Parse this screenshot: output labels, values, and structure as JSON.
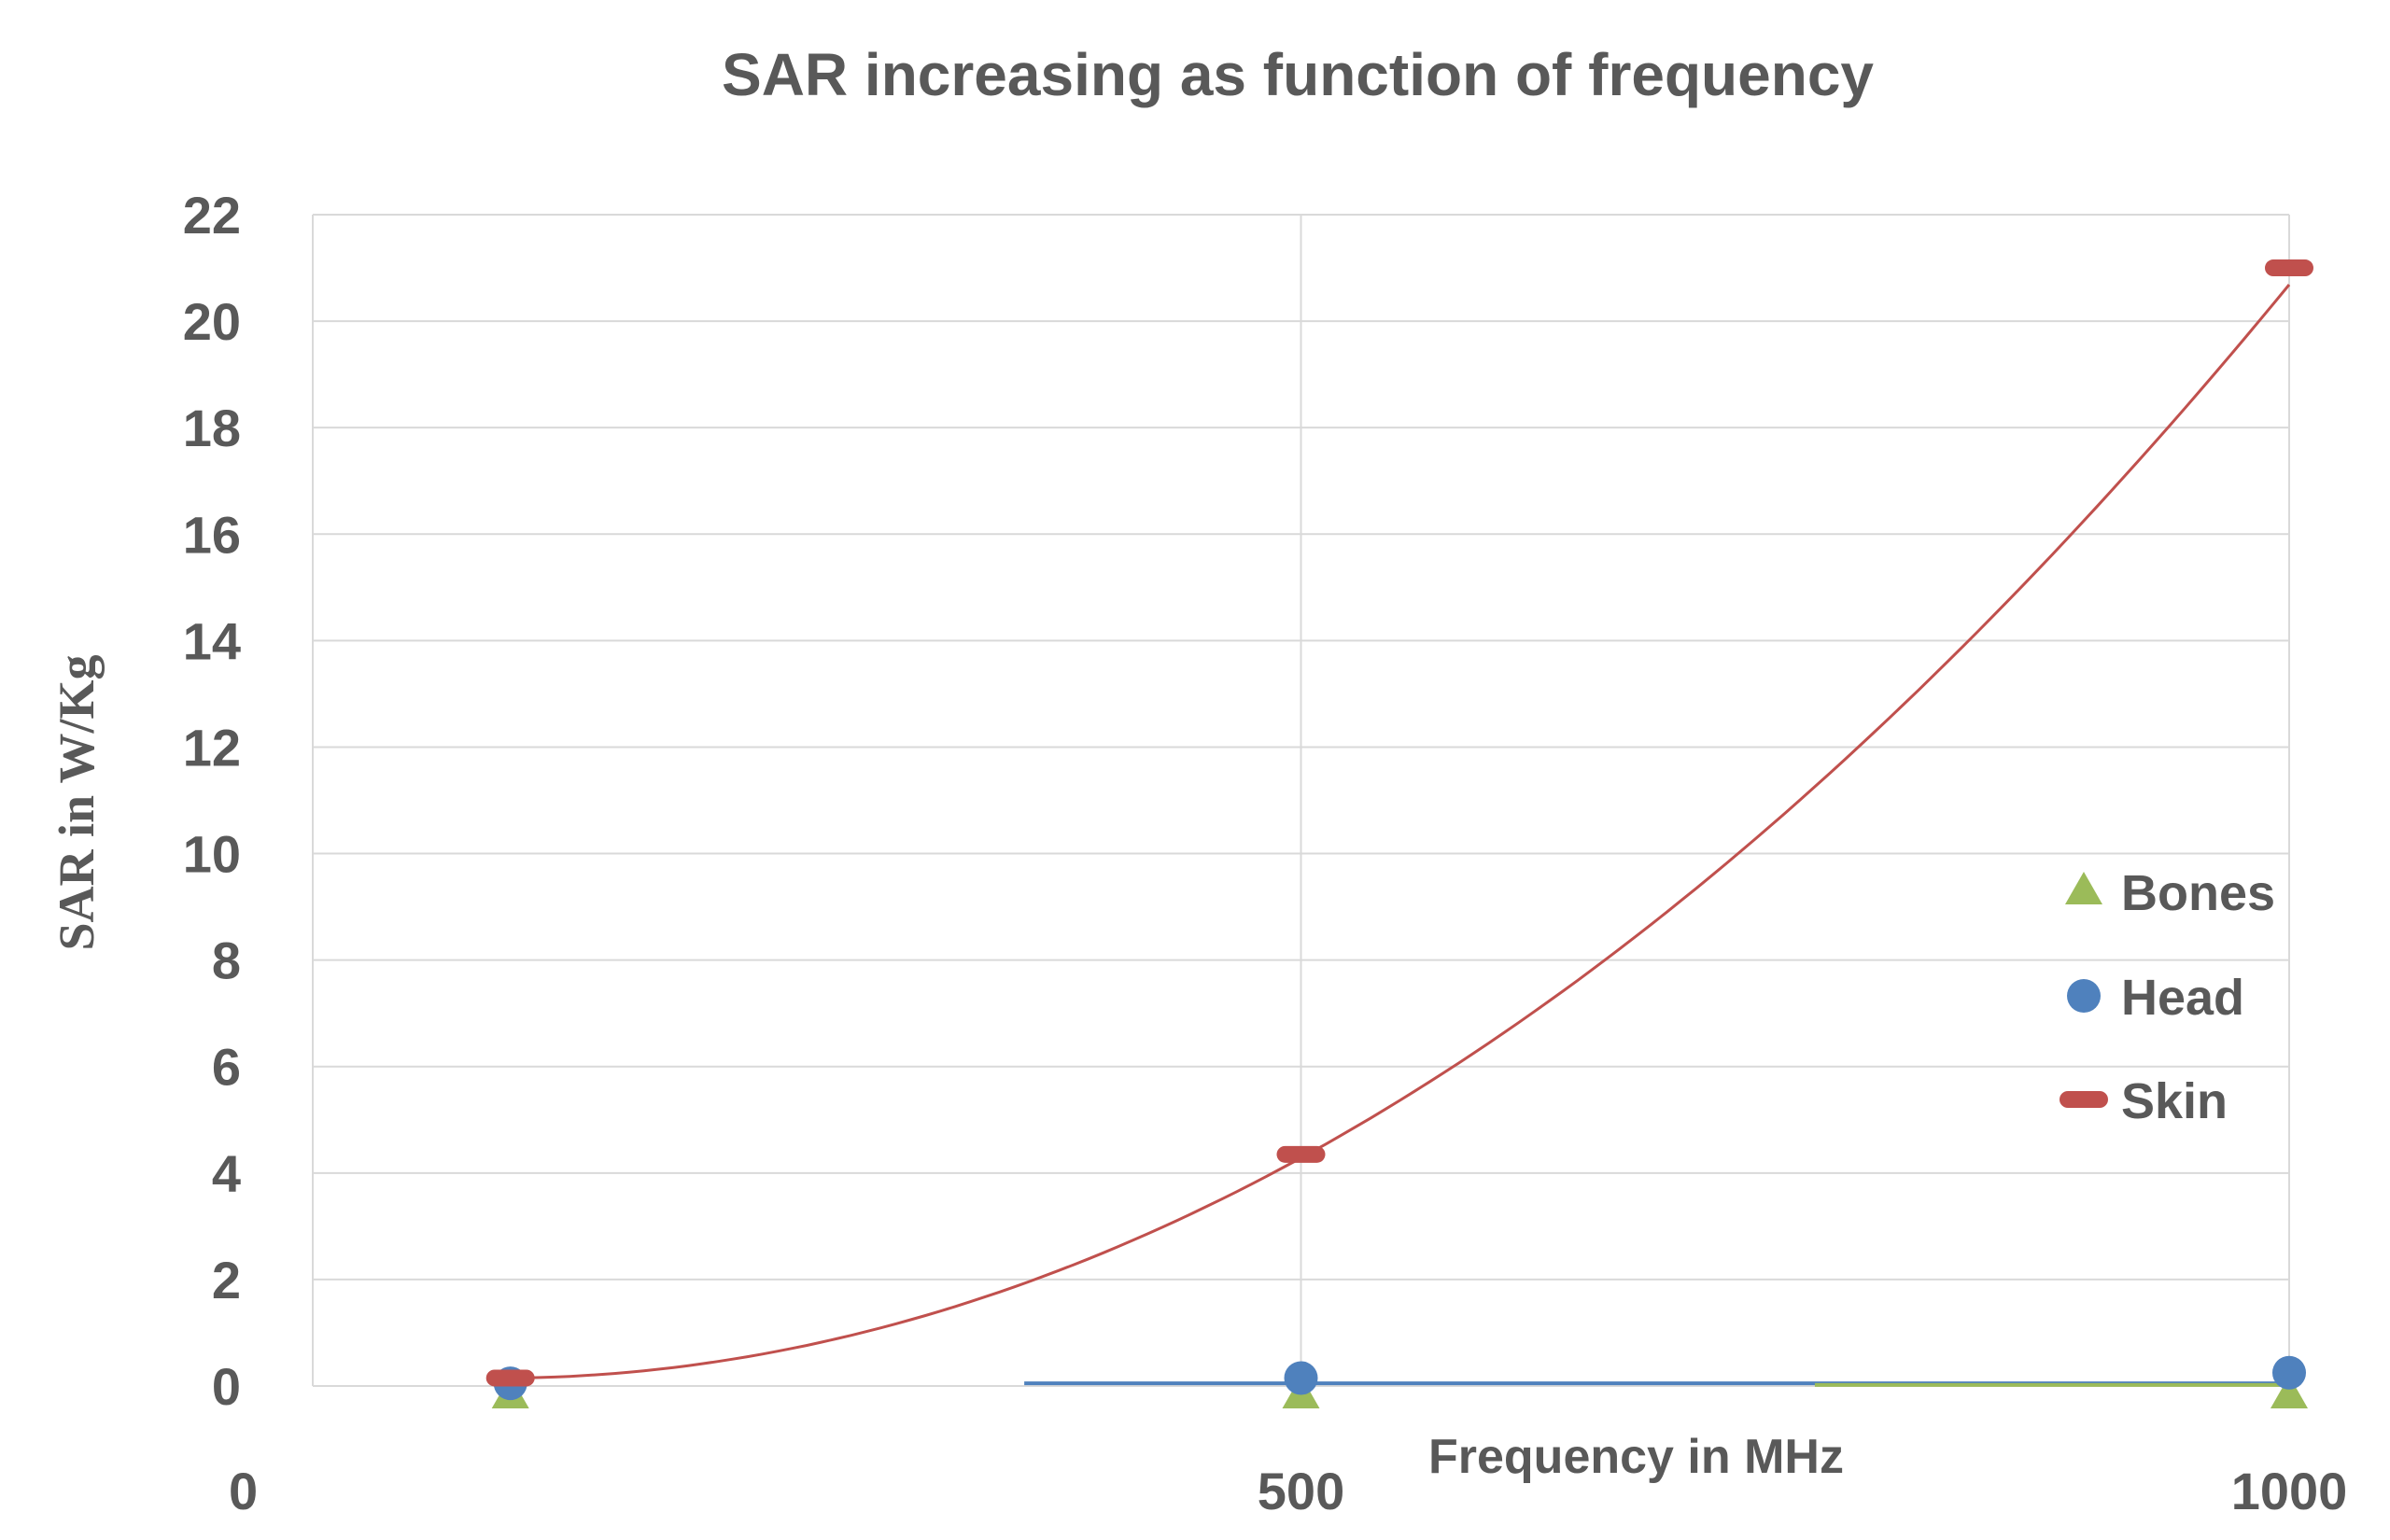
{
  "chart_data": {
    "type": "scatter",
    "title": "SAR increasing as function of frequency",
    "xlabel": "Frequency in MHz",
    "ylabel": "SAR in W/Kg",
    "xlim": [
      0,
      1000
    ],
    "ylim": [
      0,
      22
    ],
    "x_ticks": [
      0,
      500,
      1000
    ],
    "y_ticks": [
      0,
      2,
      4,
      6,
      8,
      10,
      12,
      14,
      16,
      18,
      20,
      22
    ],
    "legend_position": "right",
    "series": [
      {
        "name": "Bones",
        "marker": "triangle",
        "color": "#9bbb59",
        "points": [
          {
            "x": 100,
            "y": 0.0
          },
          {
            "x": 500,
            "y": 0.0
          },
          {
            "x": 1000,
            "y": 0.0
          }
        ]
      },
      {
        "name": "Head",
        "marker": "circle",
        "color": "#4f81bd",
        "points": [
          {
            "x": 100,
            "y": 0.05
          },
          {
            "x": 500,
            "y": 0.15
          },
          {
            "x": 1000,
            "y": 0.25
          }
        ]
      },
      {
        "name": "Skin",
        "marker": "dash",
        "color": "#c0504d",
        "points": [
          {
            "x": 100,
            "y": 0.15
          },
          {
            "x": 500,
            "y": 4.35
          },
          {
            "x": 1000,
            "y": 21.0
          }
        ]
      }
    ],
    "trendlines": [
      {
        "series": "Skin",
        "type": "polynomial",
        "color": "#c0504d",
        "x_from": 100,
        "x_to": 1000
      },
      {
        "series": "Head",
        "type": "linear",
        "color": "#4f81bd",
        "x_from": 360,
        "x_to": 1000,
        "y": 0.05
      },
      {
        "series": "Bones",
        "type": "linear",
        "color": "#9bbb59",
        "x_from": 760,
        "x_to": 1000,
        "y": 0.02
      }
    ]
  }
}
